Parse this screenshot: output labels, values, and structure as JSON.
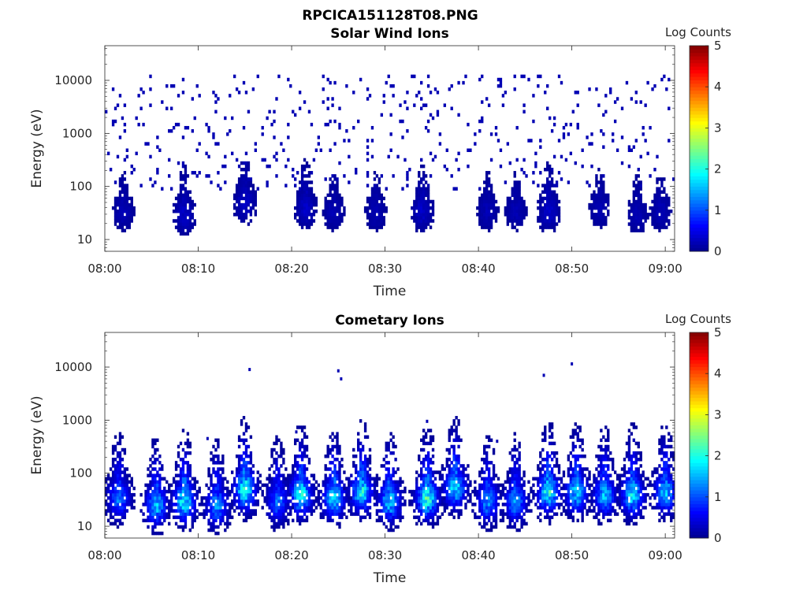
{
  "figure_title": "RPCICA151128T08.PNG",
  "colormap": [
    "#00008f",
    "#0000ff",
    "#0080ff",
    "#00ffff",
    "#80ff80",
    "#ffff00",
    "#ff8000",
    "#ff0000",
    "#800000"
  ],
  "chart_data": [
    {
      "type": "heatmap",
      "title": "Solar Wind Ions",
      "xlabel": "Time",
      "ylabel": "Energy (eV)",
      "x_ticks": [
        "08:00",
        "08:10",
        "08:20",
        "08:30",
        "08:40",
        "08:50",
        "09:00"
      ],
      "y_ticks": [
        "10",
        "100",
        "1000",
        "10000"
      ],
      "y_scale": "log",
      "ylim": [
        6,
        45000
      ],
      "xlim_minutes": [
        0,
        61
      ],
      "colorbar": {
        "label": "Log Counts",
        "ticks": [
          "0",
          "1",
          "2",
          "3",
          "4",
          "5"
        ],
        "range": [
          0,
          5
        ]
      },
      "seed": 17,
      "background_level": 0.2,
      "background_density": 0.3,
      "background_energy_range": [
        80,
        12000
      ],
      "bursts": [
        {
          "t": 2,
          "e": 35,
          "v": 0.2
        },
        {
          "t": 8.5,
          "e": 30,
          "v": 0.3
        },
        {
          "t": 15,
          "e": 50,
          "v": 0.3
        },
        {
          "t": 21.5,
          "e": 40,
          "v": 0.3
        },
        {
          "t": 24.5,
          "e": 35,
          "v": 0.2
        },
        {
          "t": 29,
          "e": 35,
          "v": 0.2
        },
        {
          "t": 34,
          "e": 35,
          "v": 0.3
        },
        {
          "t": 41,
          "e": 35,
          "v": 0.2
        },
        {
          "t": 44,
          "e": 35,
          "v": 0.2
        },
        {
          "t": 47.5,
          "e": 35,
          "v": 0.3
        },
        {
          "t": 53,
          "e": 40,
          "v": 0.2
        },
        {
          "t": 57,
          "e": 30,
          "v": 0.2
        },
        {
          "t": 59.5,
          "e": 35,
          "v": 0.2
        }
      ]
    },
    {
      "type": "heatmap",
      "title": "Cometary Ions",
      "xlabel": "Time",
      "ylabel": "Energy (eV)",
      "x_ticks": [
        "08:00",
        "08:10",
        "08:20",
        "08:30",
        "08:40",
        "08:50",
        "09:00"
      ],
      "y_ticks": [
        "10",
        "100",
        "1000",
        "10000"
      ],
      "y_scale": "log",
      "ylim": [
        6,
        45000
      ],
      "xlim_minutes": [
        0,
        61
      ],
      "colorbar": {
        "label": "Log Counts",
        "ticks": [
          "0",
          "1",
          "2",
          "3",
          "4",
          "5"
        ],
        "range": [
          0,
          5
        ]
      },
      "seed": 5,
      "bursts": [
        {
          "t": 1.5,
          "e": 35,
          "v": 1.2
        },
        {
          "t": 5.5,
          "e": 25,
          "v": 1.5
        },
        {
          "t": 8.5,
          "e": 30,
          "v": 1.8
        },
        {
          "t": 12,
          "e": 25,
          "v": 1.3
        },
        {
          "t": 15,
          "e": 50,
          "v": 1.9
        },
        {
          "t": 18.5,
          "e": 30,
          "v": 1.1
        },
        {
          "t": 21,
          "e": 40,
          "v": 1.8
        },
        {
          "t": 24.5,
          "e": 35,
          "v": 1.7
        },
        {
          "t": 27.5,
          "e": 45,
          "v": 1.8
        },
        {
          "t": 30.5,
          "e": 30,
          "v": 1.6
        },
        {
          "t": 34.5,
          "e": 35,
          "v": 2.0
        },
        {
          "t": 37.5,
          "e": 55,
          "v": 1.7
        },
        {
          "t": 41,
          "e": 30,
          "v": 1.3
        },
        {
          "t": 44,
          "e": 30,
          "v": 1.3
        },
        {
          "t": 47.5,
          "e": 45,
          "v": 1.9
        },
        {
          "t": 50.5,
          "e": 45,
          "v": 1.6
        },
        {
          "t": 53.5,
          "e": 40,
          "v": 1.5
        },
        {
          "t": 56.5,
          "e": 40,
          "v": 1.7
        },
        {
          "t": 60,
          "e": 45,
          "v": 1.5
        }
      ],
      "outliers": [
        {
          "t": 15.5,
          "e": 9000
        },
        {
          "t": 25,
          "e": 8500
        },
        {
          "t": 25.3,
          "e": 6000
        },
        {
          "t": 47,
          "e": 7000
        },
        {
          "t": 50,
          "e": 11500
        },
        {
          "t": 34.5,
          "e": 950
        },
        {
          "t": 20.5,
          "e": 600
        },
        {
          "t": 42,
          "e": 400
        },
        {
          "t": 11,
          "e": 450
        }
      ]
    }
  ]
}
